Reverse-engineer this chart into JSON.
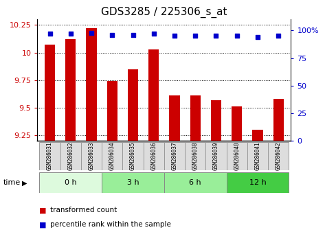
{
  "title": "GDS3285 / 225306_s_at",
  "samples": [
    "GSM286031",
    "GSM286032",
    "GSM286033",
    "GSM286034",
    "GSM286035",
    "GSM286036",
    "GSM286037",
    "GSM286038",
    "GSM286039",
    "GSM286040",
    "GSM286041",
    "GSM286042"
  ],
  "bar_values": [
    10.07,
    10.12,
    10.22,
    9.74,
    9.85,
    10.03,
    9.61,
    9.61,
    9.57,
    9.51,
    9.3,
    9.58
  ],
  "percentile_values": [
    97,
    97,
    98,
    96,
    96,
    97,
    95,
    95,
    95,
    95,
    94,
    95
  ],
  "bar_color": "#cc0000",
  "dot_color": "#0000cc",
  "ylim": [
    9.2,
    10.3
  ],
  "yticks": [
    9.25,
    9.5,
    9.75,
    10.0,
    10.25
  ],
  "right_ylim": [
    0,
    110
  ],
  "right_yticks": [
    0,
    25,
    50,
    75,
    100
  ],
  "right_yticklabels": [
    "0",
    "25",
    "50",
    "75",
    "100%"
  ],
  "groups": [
    {
      "label": "0 h",
      "start": 0,
      "end": 3,
      "color": "#ddfadd"
    },
    {
      "label": "3 h",
      "start": 3,
      "end": 6,
      "color": "#99ee99"
    },
    {
      "label": "6 h",
      "start": 6,
      "end": 9,
      "color": "#99ee99"
    },
    {
      "label": "12 h",
      "start": 9,
      "end": 12,
      "color": "#44cc44"
    }
  ],
  "sample_box_color": "#dddddd",
  "sample_box_edge": "#999999",
  "time_label": "time",
  "legend_bar_label": "transformed count",
  "legend_dot_label": "percentile rank within the sample",
  "bg_color": "#ffffff",
  "tick_label_color_left": "#cc0000",
  "tick_label_color_right": "#0000cc",
  "title_fontsize": 11,
  "axis_fontsize": 8,
  "label_fontsize": 8
}
